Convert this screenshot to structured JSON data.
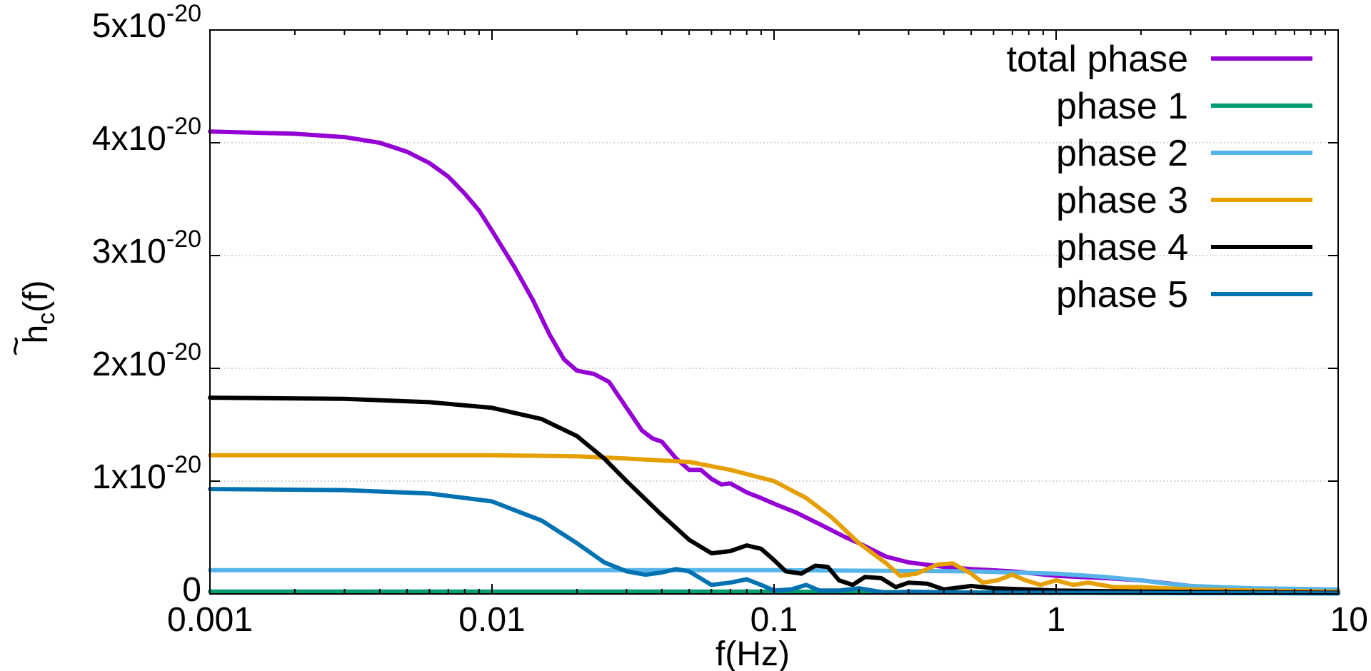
{
  "chart_data": {
    "type": "line",
    "title": "",
    "xlabel": "f(Hz)",
    "ylabel_main": "h",
    "ylabel_sub": "c",
    "ylabel_suffix": "(f)",
    "ylabel_accent": "~",
    "x_scale": "log",
    "xlim": [
      0.001,
      10
    ],
    "ylim": [
      0,
      5e-20
    ],
    "x_ticks": [
      {
        "value": 0.001,
        "label": "0.001"
      },
      {
        "value": 0.01,
        "label": "0.01"
      },
      {
        "value": 0.1,
        "label": "0.1"
      },
      {
        "value": 1,
        "label": "1"
      },
      {
        "value": 10,
        "label": "10"
      }
    ],
    "y_ticks": [
      {
        "value": 0,
        "mantissa": "0",
        "exponent": ""
      },
      {
        "value": 1e-20,
        "mantissa": "1x10",
        "exponent": "-20"
      },
      {
        "value": 2e-20,
        "mantissa": "2x10",
        "exponent": "-20"
      },
      {
        "value": 3e-20,
        "mantissa": "3x10",
        "exponent": "-20"
      },
      {
        "value": 4e-20,
        "mantissa": "4x10",
        "exponent": "-20"
      },
      {
        "value": 5e-20,
        "mantissa": "5x10",
        "exponent": "-20"
      }
    ],
    "grid": true,
    "legend_position": "top-right",
    "series": [
      {
        "name": "total phase",
        "color": "#9400d3",
        "points": [
          [
            0.001,
            4.1e-20
          ],
          [
            0.002,
            4.08e-20
          ],
          [
            0.003,
            4.05e-20
          ],
          [
            0.004,
            4e-20
          ],
          [
            0.005,
            3.92e-20
          ],
          [
            0.006,
            3.82e-20
          ],
          [
            0.007,
            3.7e-20
          ],
          [
            0.008,
            3.55e-20
          ],
          [
            0.009,
            3.4e-20
          ],
          [
            0.01,
            3.22e-20
          ],
          [
            0.012,
            2.9e-20
          ],
          [
            0.014,
            2.6e-20
          ],
          [
            0.016,
            2.3e-20
          ],
          [
            0.018,
            2.08e-20
          ],
          [
            0.02,
            1.98e-20
          ],
          [
            0.023,
            1.95e-20
          ],
          [
            0.026,
            1.88e-20
          ],
          [
            0.03,
            1.65e-20
          ],
          [
            0.034,
            1.45e-20
          ],
          [
            0.037,
            1.38e-20
          ],
          [
            0.04,
            1.35e-20
          ],
          [
            0.045,
            1.2e-20
          ],
          [
            0.05,
            1.1e-20
          ],
          [
            0.055,
            1.1e-20
          ],
          [
            0.06,
            1.02e-20
          ],
          [
            0.065,
            9.7e-21
          ],
          [
            0.07,
            9.8e-21
          ],
          [
            0.08,
            9e-21
          ],
          [
            0.09,
            8.5e-21
          ],
          [
            0.1,
            8e-21
          ],
          [
            0.12,
            7.2e-21
          ],
          [
            0.15,
            6e-21
          ],
          [
            0.18,
            5e-21
          ],
          [
            0.2,
            4.5e-21
          ],
          [
            0.25,
            3.3e-21
          ],
          [
            0.3,
            2.8e-21
          ],
          [
            0.4,
            2.4e-21
          ],
          [
            0.5,
            2.2e-21
          ],
          [
            0.7,
            2e-21
          ],
          [
            1,
            1.6e-21
          ],
          [
            1.5,
            1.4e-21
          ],
          [
            2,
            1.2e-21
          ],
          [
            3,
            7e-22
          ],
          [
            4,
            5e-22
          ],
          [
            6,
            4e-22
          ],
          [
            10,
            3e-22
          ]
        ]
      },
      {
        "name": "phase 1",
        "color": "#009e73",
        "points": [
          [
            0.001,
            2e-22
          ],
          [
            0.1,
            2e-22
          ],
          [
            1,
            1e-22
          ],
          [
            10,
            5e-23
          ]
        ]
      },
      {
        "name": "phase 2",
        "color": "#56b4e9",
        "points": [
          [
            0.001,
            2.1e-21
          ],
          [
            0.01,
            2.1e-21
          ],
          [
            0.1,
            2.1e-21
          ],
          [
            0.5,
            2e-21
          ],
          [
            1,
            1.8e-21
          ],
          [
            1.5,
            1.5e-21
          ],
          [
            2,
            1.2e-21
          ],
          [
            2.5,
            9e-22
          ],
          [
            3,
            7e-22
          ],
          [
            5,
            5e-22
          ],
          [
            10,
            4e-22
          ]
        ]
      },
      {
        "name": "phase 3",
        "color": "#e69f00",
        "points": [
          [
            0.001,
            1.23e-20
          ],
          [
            0.005,
            1.23e-20
          ],
          [
            0.01,
            1.23e-20
          ],
          [
            0.02,
            1.22e-20
          ],
          [
            0.03,
            1.2e-20
          ],
          [
            0.05,
            1.17e-20
          ],
          [
            0.07,
            1.1e-20
          ],
          [
            0.1,
            1e-20
          ],
          [
            0.13,
            8.5e-21
          ],
          [
            0.16,
            6.8e-21
          ],
          [
            0.2,
            4.5e-21
          ],
          [
            0.25,
            2.7e-21
          ],
          [
            0.28,
            1.6e-21
          ],
          [
            0.32,
            1.8e-21
          ],
          [
            0.38,
            2.6e-21
          ],
          [
            0.43,
            2.7e-21
          ],
          [
            0.5,
            1.8e-21
          ],
          [
            0.55,
            1e-21
          ],
          [
            0.62,
            1.2e-21
          ],
          [
            0.7,
            1.7e-21
          ],
          [
            0.78,
            1.2e-21
          ],
          [
            0.88,
            8e-22
          ],
          [
            1.0,
            1.2e-21
          ],
          [
            1.15,
            8e-22
          ],
          [
            1.3,
            1e-21
          ],
          [
            1.6,
            6e-22
          ],
          [
            2,
            6e-22
          ],
          [
            3,
            4e-22
          ],
          [
            5,
            3e-22
          ],
          [
            10,
            2e-22
          ]
        ]
      },
      {
        "name": "phase 4",
        "color": "#000000",
        "points": [
          [
            0.001,
            1.74e-20
          ],
          [
            0.003,
            1.73e-20
          ],
          [
            0.006,
            1.7e-20
          ],
          [
            0.01,
            1.65e-20
          ],
          [
            0.015,
            1.55e-20
          ],
          [
            0.02,
            1.4e-20
          ],
          [
            0.025,
            1.2e-20
          ],
          [
            0.03,
            1e-20
          ],
          [
            0.04,
            7e-21
          ],
          [
            0.05,
            4.8e-21
          ],
          [
            0.06,
            3.6e-21
          ],
          [
            0.07,
            3.8e-21
          ],
          [
            0.08,
            4.3e-21
          ],
          [
            0.09,
            4e-21
          ],
          [
            0.1,
            3e-21
          ],
          [
            0.11,
            2e-21
          ],
          [
            0.125,
            1.8e-21
          ],
          [
            0.14,
            2.5e-21
          ],
          [
            0.155,
            2.4e-21
          ],
          [
            0.17,
            1.2e-21
          ],
          [
            0.19,
            8e-22
          ],
          [
            0.21,
            1.5e-21
          ],
          [
            0.24,
            1.4e-21
          ],
          [
            0.27,
            6e-22
          ],
          [
            0.3,
            1e-21
          ],
          [
            0.35,
            9e-22
          ],
          [
            0.4,
            4e-22
          ],
          [
            0.5,
            7e-22
          ],
          [
            0.6,
            5e-22
          ],
          [
            0.8,
            4e-22
          ],
          [
            1,
            3e-22
          ],
          [
            2,
            2e-22
          ],
          [
            10,
            1e-22
          ]
        ]
      },
      {
        "name": "phase 5",
        "color": "#0072b2",
        "points": [
          [
            0.001,
            9.3e-21
          ],
          [
            0.003,
            9.2e-21
          ],
          [
            0.006,
            8.9e-21
          ],
          [
            0.01,
            8.2e-21
          ],
          [
            0.015,
            6.5e-21
          ],
          [
            0.02,
            4.5e-21
          ],
          [
            0.025,
            2.8e-21
          ],
          [
            0.03,
            2e-21
          ],
          [
            0.035,
            1.7e-21
          ],
          [
            0.04,
            1.9e-21
          ],
          [
            0.045,
            2.2e-21
          ],
          [
            0.05,
            2e-21
          ],
          [
            0.06,
            8e-22
          ],
          [
            0.07,
            1e-21
          ],
          [
            0.08,
            1.3e-21
          ],
          [
            0.09,
            8e-22
          ],
          [
            0.1,
            3e-22
          ],
          [
            0.115,
            4e-22
          ],
          [
            0.13,
            8e-22
          ],
          [
            0.145,
            3e-22
          ],
          [
            0.17,
            3e-22
          ],
          [
            0.2,
            5e-22
          ],
          [
            0.25,
            1e-22
          ],
          [
            0.3,
            2e-22
          ],
          [
            0.5,
            1e-22
          ],
          [
            1,
            1e-22
          ],
          [
            10,
            5e-23
          ]
        ]
      }
    ]
  }
}
